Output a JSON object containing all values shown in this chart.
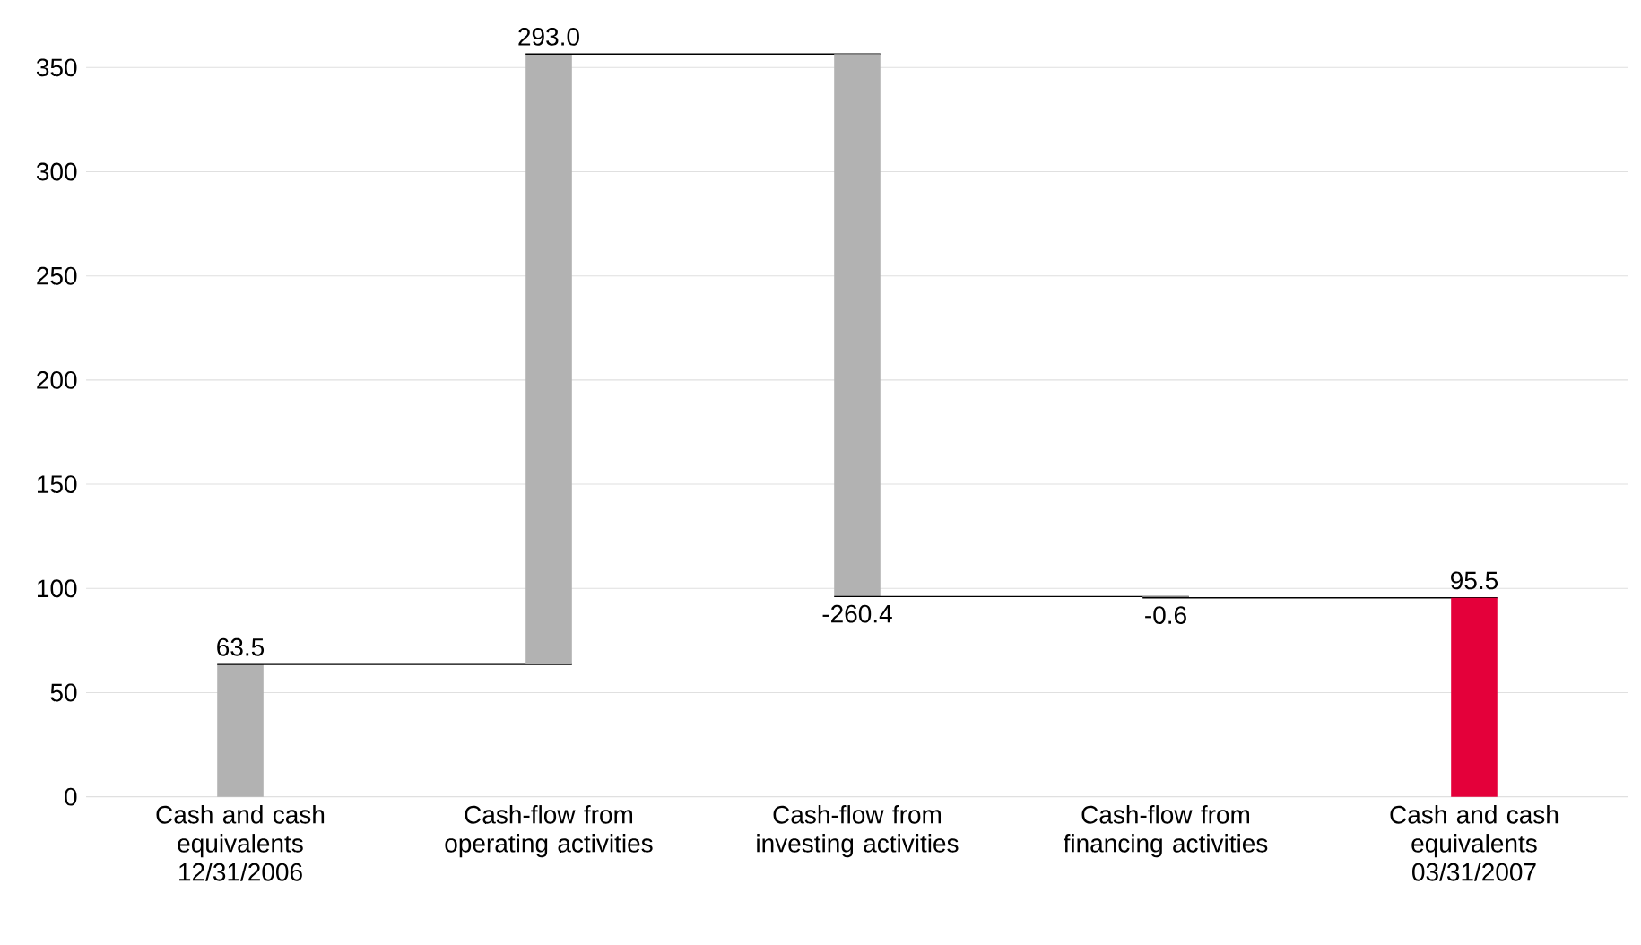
{
  "chart_data": {
    "type": "bar",
    "categories": [
      "Cash and cash equivalents 12/31/2006",
      "Cash-flow from operating activities",
      "Cash-flow from investing activities",
      "Cash-flow from financing activities",
      "Cash and cash equivalents 03/31/2007"
    ],
    "values": [
      63.5,
      293.0,
      -260.4,
      -0.6,
      95.5
    ],
    "base": [
      0,
      63.5,
      356.5,
      96.1,
      0
    ],
    "value_labels": [
      "63.5",
      "293.0",
      "-260.4",
      "-0.6",
      "95.5"
    ],
    "colors": [
      "#b2b2b2",
      "#b2b2b2",
      "#b2b2b2",
      "#b2b2b2",
      "#e4003a"
    ],
    "ylim": [
      0,
      350
    ],
    "yticks": [
      0,
      50,
      100,
      150,
      200,
      250,
      300,
      350
    ],
    "grid": "y"
  }
}
